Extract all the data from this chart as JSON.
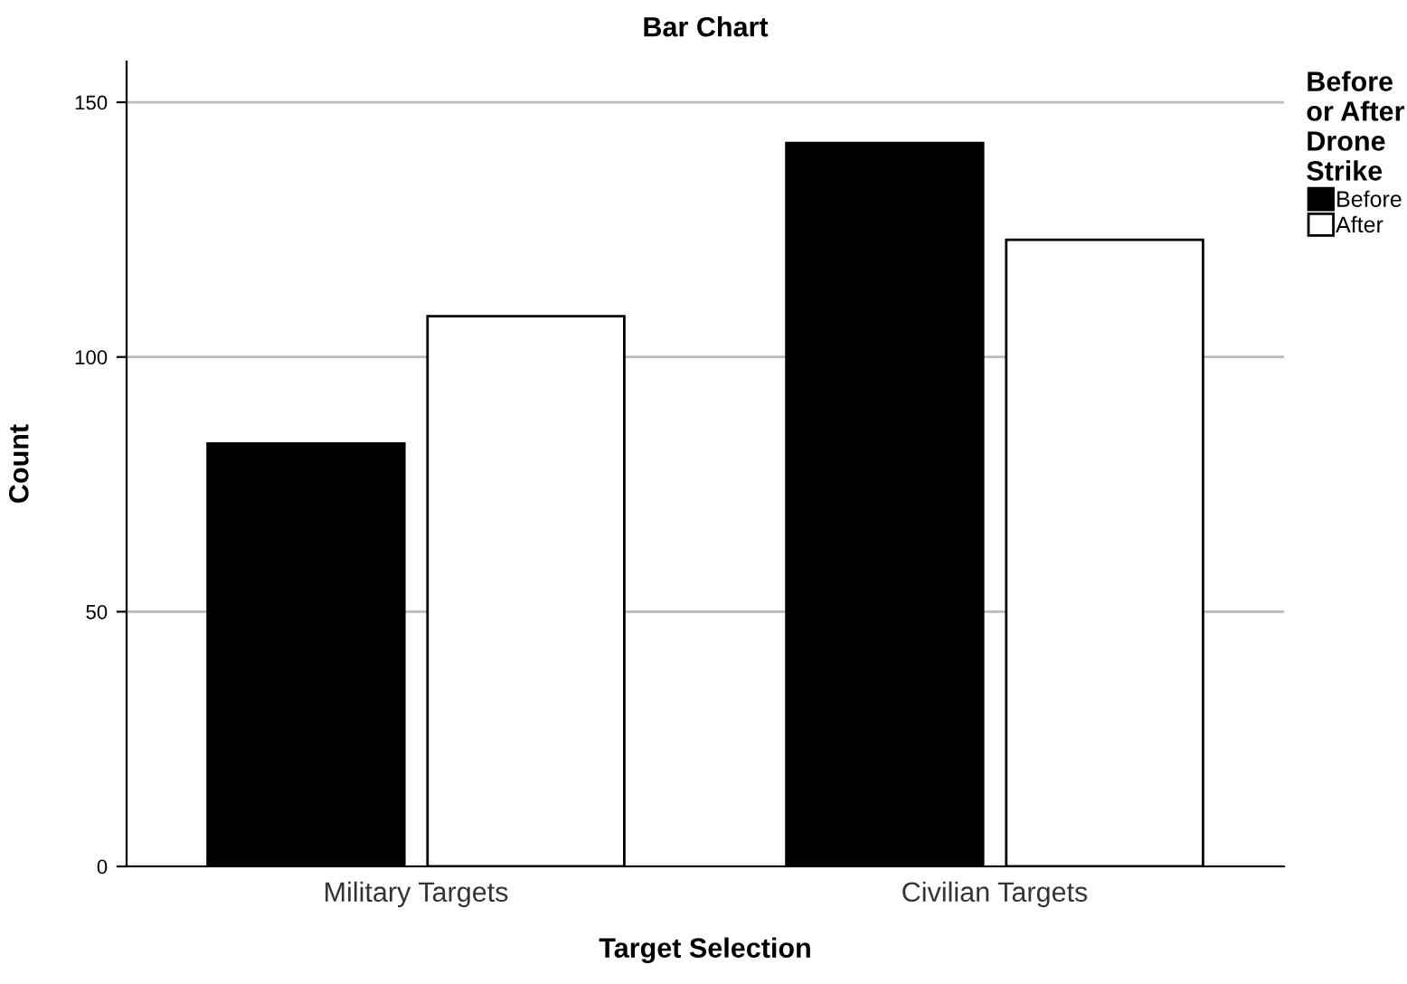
{
  "chart_data": {
    "type": "bar",
    "title": "Bar Chart",
    "xlabel": "Target Selection",
    "ylabel": "Count",
    "categories": [
      "Military Targets",
      "Civilian Targets"
    ],
    "series": [
      {
        "name": "Before",
        "color": "#000000",
        "values": [
          83,
          142
        ]
      },
      {
        "name": "After",
        "color": "#ffffff",
        "values": [
          108,
          123
        ]
      }
    ],
    "legend_title": "Before\nor After\nDrone\nStrike",
    "legend": "top right",
    "ylim": [
      0,
      158
    ],
    "yticks": [
      0,
      50,
      100,
      150
    ],
    "grid": "y"
  }
}
